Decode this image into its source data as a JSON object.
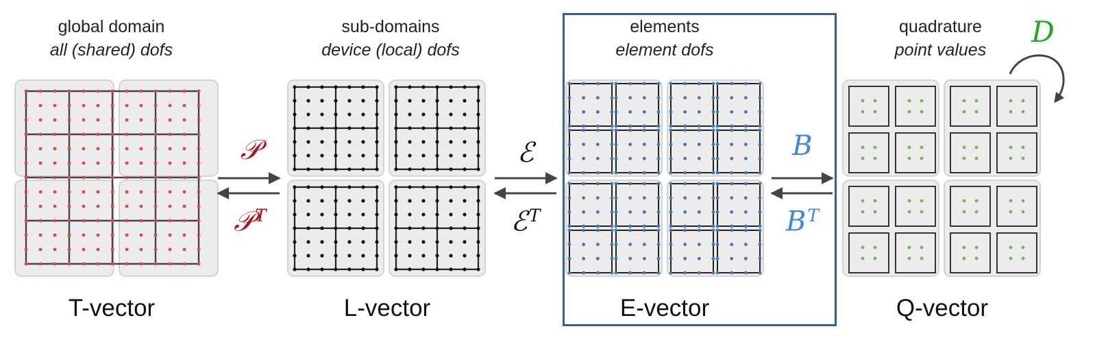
{
  "columns": [
    {
      "title": "global domain",
      "subtitle": "all (shared) dofs",
      "label": "T-vector",
      "dot_color": "#e8413e"
    },
    {
      "title": "sub-domains",
      "subtitle": "device (local) dofs",
      "label": "L-vector",
      "dot_color": "#111111"
    },
    {
      "title": "elements",
      "subtitle": "element dofs",
      "label": "E-vector",
      "dot_color": "#3b78b8"
    },
    {
      "title": "quadrature",
      "subtitle": "point values",
      "label": "Q-vector",
      "dot_color": "#7ab648"
    }
  ],
  "operators": {
    "P": {
      "forward": "𝒫",
      "transpose": "𝒫",
      "sup": "T",
      "color": "#b3121a"
    },
    "E": {
      "forward": "ℰ",
      "transpose": "ℰ",
      "sup": "T",
      "color": "#111111"
    },
    "B": {
      "forward": "B",
      "transpose": "B",
      "sup": "T",
      "color": "#3d86e8"
    },
    "D": {
      "label": "D",
      "color": "#23a623"
    }
  },
  "highlight_color": "#2f5f9f"
}
